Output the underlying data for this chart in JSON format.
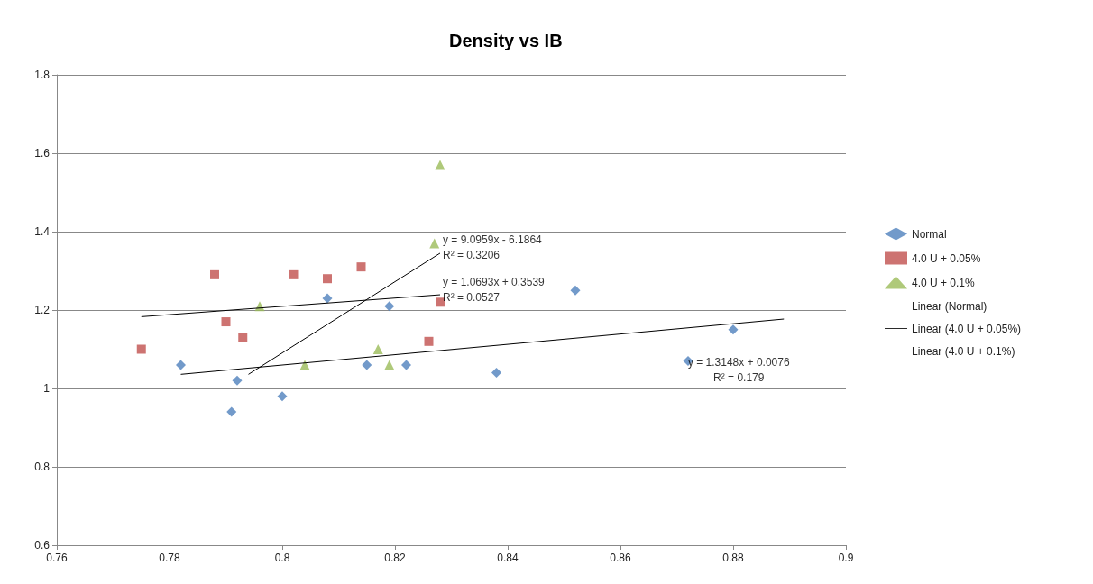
{
  "chart_data": {
    "type": "scatter",
    "title": "Density vs IB",
    "xlim": [
      0.76,
      0.9
    ],
    "xticks": [
      0.76,
      0.78,
      0.8,
      0.82,
      0.84,
      0.86,
      0.88,
      0.9
    ],
    "ylim": [
      0.6,
      1.8
    ],
    "yticks": [
      0.6,
      0.8,
      1,
      1.2,
      1.4,
      1.6,
      1.8
    ],
    "grid": "y",
    "legend": "right",
    "series": [
      {
        "name": "Normal",
        "marker": "diamond",
        "color": "#4f81bd",
        "x": [
          0.782,
          0.792,
          0.791,
          0.8,
          0.808,
          0.819,
          0.815,
          0.822,
          0.838,
          0.852,
          0.872,
          0.88
        ],
        "values": [
          1.06,
          1.02,
          0.94,
          0.98,
          1.23,
          1.21,
          1.06,
          1.06,
          1.04,
          1.25,
          1.07,
          1.15
        ]
      },
      {
        "name": "4.0 U + 0.05%",
        "marker": "square",
        "color": "#c0504d",
        "x": [
          0.775,
          0.788,
          0.79,
          0.793,
          0.802,
          0.808,
          0.814,
          0.826,
          0.828
        ],
        "values": [
          1.1,
          1.29,
          1.17,
          1.13,
          1.29,
          1.28,
          1.31,
          1.12,
          1.22
        ]
      },
      {
        "name": "4.0 U + 0.1%",
        "marker": "triangle",
        "color": "#9bbb59",
        "x": [
          0.796,
          0.804,
          0.817,
          0.819,
          0.827,
          0.828
        ],
        "values": [
          1.21,
          1.06,
          1.1,
          1.06,
          1.37,
          1.57
        ]
      },
      {
        "name": "Linear (Normal)",
        "type": "line",
        "marker": "none",
        "color": "#000000",
        "x": [
          0.782,
          0.889
        ],
        "values": [
          1.036,
          1.177
        ]
      },
      {
        "name": "Linear (4.0 U + 0.05%)",
        "type": "line",
        "marker": "none",
        "color": "#000000",
        "x": [
          0.775,
          0.828
        ],
        "values": [
          1.183,
          1.239
        ]
      },
      {
        "name": "Linear (4.0 U + 0.1%)",
        "type": "line",
        "marker": "none",
        "color": "#000000",
        "x": [
          0.794,
          0.828
        ],
        "values": [
          1.036,
          1.345
        ]
      }
    ],
    "annotations": [
      "y = 1.3148x + 0.0076\nR² = 0.179",
      "y = 1.0693x + 0.3539\nR² = 0.0527",
      "y = 9.0959x - 6.1864\nR² = 0.3206"
    ]
  }
}
